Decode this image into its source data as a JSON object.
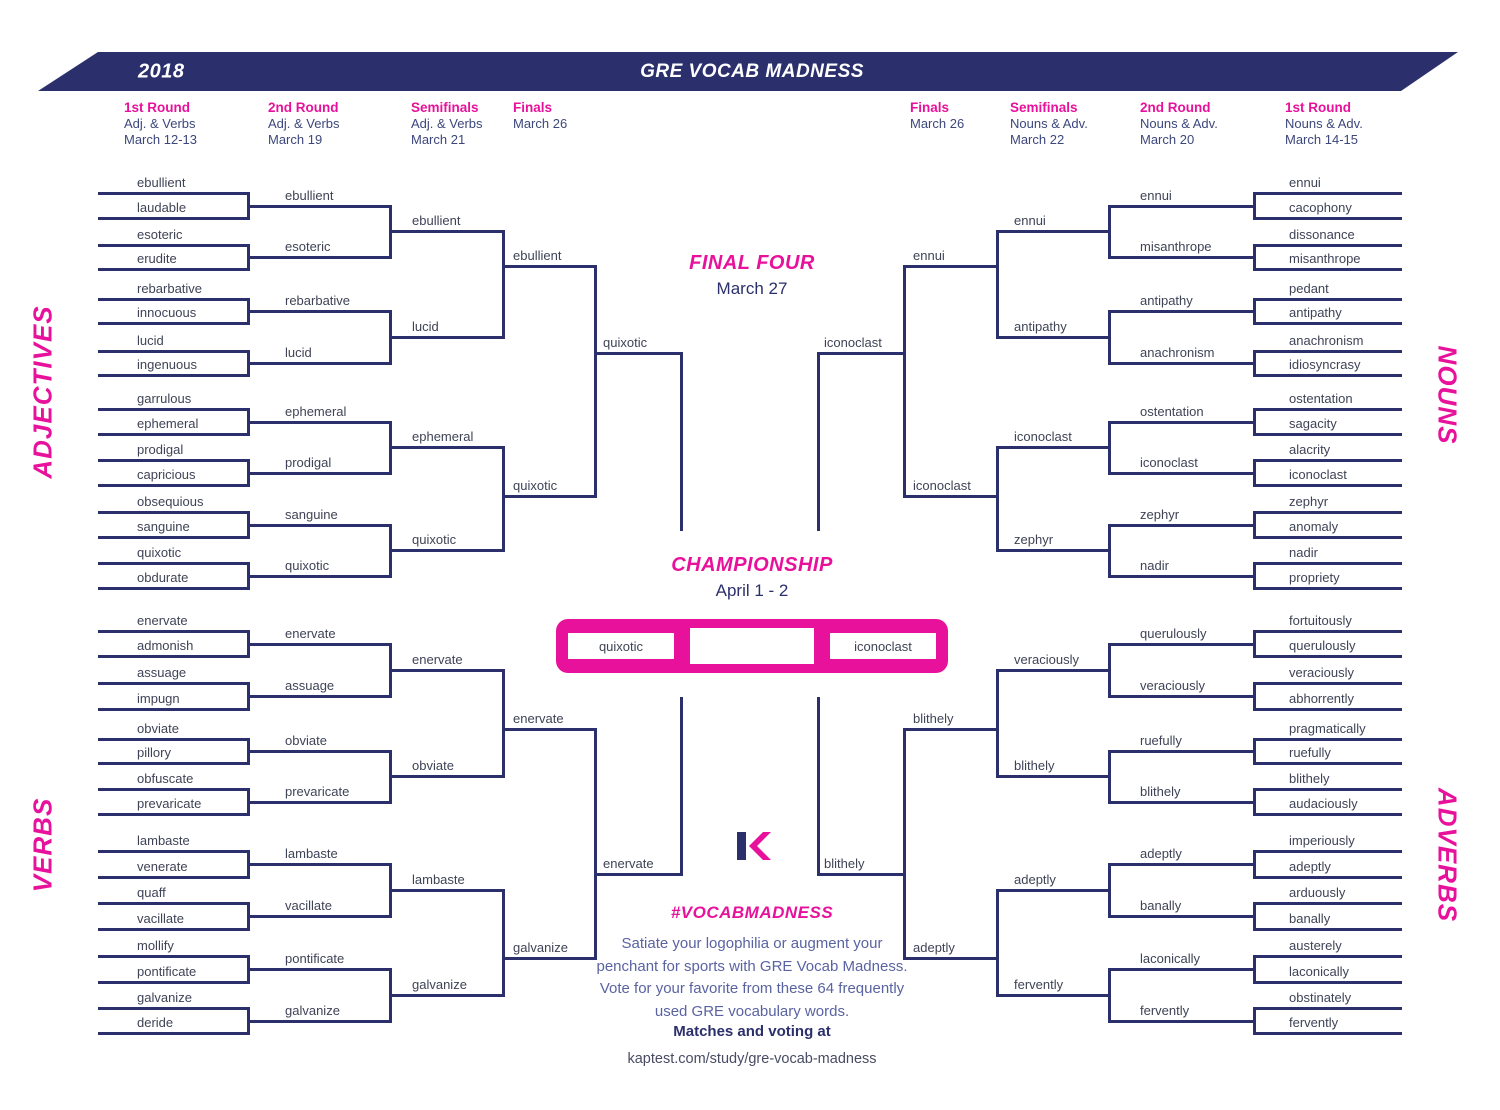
{
  "banner": {
    "year": "2018",
    "title": "GRE VOCAB MADNESS"
  },
  "round_headers": [
    {
      "title": "1st Round",
      "sub1": "Adj. & Verbs",
      "sub2": "March 12-13"
    },
    {
      "title": "2nd Round",
      "sub1": "Adj. & Verbs",
      "sub2": "March 19"
    },
    {
      "title": "Semifinals",
      "sub1": "Adj. & Verbs",
      "sub2": "March 21"
    },
    {
      "title": "Finals",
      "sub1": "March 26",
      "sub2": ""
    },
    {
      "title": "Finals",
      "sub1": "March 26",
      "sub2": ""
    },
    {
      "title": "Semifinals",
      "sub1": "Nouns & Adv.",
      "sub2": "March 22"
    },
    {
      "title": "2nd Round",
      "sub1": "Nouns & Adv.",
      "sub2": "March 20"
    },
    {
      "title": "1st Round",
      "sub1": "Nouns & Adv.",
      "sub2": "March 14-15"
    }
  ],
  "side_labels": {
    "adjectives": "ADJECTIVES",
    "verbs": "VERBS",
    "nouns": "NOUNS",
    "adverbs": "ADVERBS"
  },
  "final_four": {
    "title": "FINAL FOUR",
    "date": "March 27"
  },
  "championship": {
    "title": "CHAMPIONSHIP",
    "date": "April 1 - 2",
    "finalist_left": "quixotic",
    "finalist_right": "iconoclast",
    "winner": ""
  },
  "brackets": {
    "adjectives": {
      "round1": [
        "ebullient",
        "laudable",
        "esoteric",
        "erudite",
        "rebarbative",
        "innocuous",
        "lucid",
        "ingenuous",
        "garrulous",
        "ephemeral",
        "prodigal",
        "capricious",
        "obsequious",
        "sanguine",
        "quixotic",
        "obdurate"
      ],
      "round2": [
        "ebullient",
        "esoteric",
        "rebarbative",
        "lucid",
        "ephemeral",
        "prodigal",
        "sanguine",
        "quixotic"
      ],
      "semifinals": [
        "ebullient",
        "lucid",
        "ephemeral",
        "quixotic"
      ],
      "finals": [
        "ebullient",
        "quixotic"
      ],
      "final_four": [
        "quixotic"
      ]
    },
    "verbs": {
      "round1": [
        "enervate",
        "admonish",
        "assuage",
        "impugn",
        "obviate",
        "pillory",
        "obfuscate",
        "prevaricate",
        "lambaste",
        "venerate",
        "quaff",
        "vacillate",
        "mollify",
        "pontificate",
        "galvanize",
        "deride"
      ],
      "round2": [
        "enervate",
        "assuage",
        "obviate",
        "prevaricate",
        "lambaste",
        "vacillate",
        "pontificate",
        "galvanize"
      ],
      "semifinals": [
        "enervate",
        "obviate",
        "lambaste",
        "galvanize"
      ],
      "finals": [
        "enervate",
        "galvanize"
      ],
      "final_four": [
        "enervate"
      ]
    },
    "nouns": {
      "round1": [
        "ennui",
        "cacophony",
        "dissonance",
        "misanthrope",
        "pedant",
        "antipathy",
        "anachronism",
        "idiosyncrasy",
        "ostentation",
        "sagacity",
        "alacrity",
        "iconoclast",
        "zephyr",
        "anomaly",
        "nadir",
        "propriety"
      ],
      "round2": [
        "ennui",
        "misanthrope",
        "antipathy",
        "anachronism",
        "ostentation",
        "iconoclast",
        "zephyr",
        "nadir"
      ],
      "semifinals": [
        "ennui",
        "antipathy",
        "iconoclast",
        "zephyr"
      ],
      "finals": [
        "ennui",
        "iconoclast"
      ],
      "final_four": [
        "iconoclast"
      ]
    },
    "adverbs": {
      "round1": [
        "fortuitously",
        "querulously",
        "veraciously",
        "abhorrently",
        "pragmatically",
        "ruefully",
        "blithely",
        "audaciously",
        "imperiously",
        "adeptly",
        "arduously",
        "banally",
        "austerely",
        "laconically",
        "obstinately",
        "fervently"
      ],
      "round2": [
        "querulously",
        "veraciously",
        "ruefully",
        "blithely",
        "adeptly",
        "banally",
        "laconically",
        "fervently"
      ],
      "semifinals": [
        "veraciously",
        "blithely",
        "adeptly",
        "fervently"
      ],
      "finals": [
        "blithely",
        "adeptly"
      ],
      "final_four": [
        "blithely"
      ]
    }
  },
  "footer": {
    "hashtag": "#VOCABMADNESS",
    "blurb_lines": [
      "Satiate your logophilia or augment your",
      "penchant for sports with GRE Vocab Madness.",
      "Vote for your favorite from these 64 frequently",
      "used GRE vocabulary words."
    ],
    "voting_label": "Matches and voting at",
    "url": "kaptest.com/study/gre-vocab-madness"
  },
  "colors": {
    "navy": "#2b2f6c",
    "pink": "#e8119b",
    "ink": "#3f4356"
  }
}
